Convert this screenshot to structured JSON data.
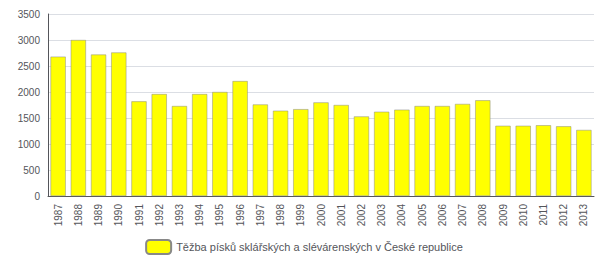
{
  "chart_data": {
    "type": "bar",
    "categories": [
      "1987",
      "1988",
      "1989",
      "1990",
      "1991",
      "1992",
      "1993",
      "1994",
      "1995",
      "1996",
      "1997",
      "1998",
      "1999",
      "2000",
      "2001",
      "2002",
      "2003",
      "2004",
      "2005",
      "2006",
      "2007",
      "2008",
      "2009",
      "2010",
      "2011",
      "2012",
      "2013"
    ],
    "series": [
      {
        "name": "Těžba písků sklářských a slévárenských v České republice",
        "color": "#FFFF00",
        "values": [
          2680,
          3000,
          2720,
          2760,
          1820,
          1960,
          1730,
          1960,
          2000,
          2210,
          1760,
          1640,
          1670,
          1800,
          1750,
          1530,
          1620,
          1660,
          1730,
          1730,
          1770,
          1840,
          1350,
          1350,
          1360,
          1340,
          1270
        ]
      }
    ],
    "ylim": [
      0,
      3500
    ],
    "yticks": [
      0,
      500,
      1000,
      1500,
      2000,
      2500,
      3000,
      3500
    ],
    "grid": true,
    "legend": "bottom"
  }
}
